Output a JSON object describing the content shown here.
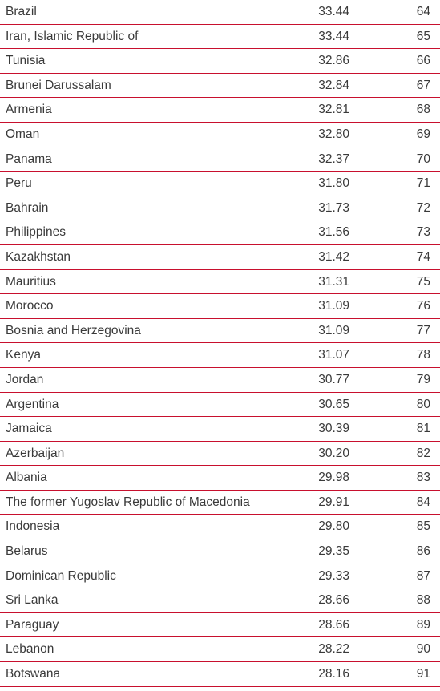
{
  "rows": [
    {
      "country": "Brazil",
      "score": "33.44",
      "rank": "64"
    },
    {
      "country": "Iran, Islamic Republic of",
      "score": "33.44",
      "rank": "65"
    },
    {
      "country": "Tunisia",
      "score": "32.86",
      "rank": "66"
    },
    {
      "country": "Brunei Darussalam",
      "score": "32.84",
      "rank": "67"
    },
    {
      "country": "Armenia",
      "score": "32.81",
      "rank": "68"
    },
    {
      "country": "Oman",
      "score": "32.80",
      "rank": "69"
    },
    {
      "country": "Panama",
      "score": "32.37",
      "rank": "70"
    },
    {
      "country": "Peru",
      "score": "31.80",
      "rank": "71"
    },
    {
      "country": "Bahrain",
      "score": "31.73",
      "rank": "72"
    },
    {
      "country": "Philippines",
      "score": "31.56",
      "rank": "73"
    },
    {
      "country": "Kazakhstan",
      "score": "31.42",
      "rank": "74"
    },
    {
      "country": "Mauritius",
      "score": "31.31",
      "rank": "75"
    },
    {
      "country": "Morocco",
      "score": "31.09",
      "rank": "76"
    },
    {
      "country": "Bosnia and Herzegovina",
      "score": "31.09",
      "rank": "77"
    },
    {
      "country": "Kenya",
      "score": "31.07",
      "rank": "78"
    },
    {
      "country": "Jordan",
      "score": "30.77",
      "rank": "79"
    },
    {
      "country": "Argentina",
      "score": "30.65",
      "rank": "80"
    },
    {
      "country": "Jamaica",
      "score": "30.39",
      "rank": "81"
    },
    {
      "country": "Azerbaijan",
      "score": "30.20",
      "rank": "82"
    },
    {
      "country": "Albania",
      "score": "29.98",
      "rank": "83"
    },
    {
      "country": "The former Yugoslav Republic of Macedonia",
      "score": "29.91",
      "rank": "84"
    },
    {
      "country": "Indonesia",
      "score": "29.80",
      "rank": "85"
    },
    {
      "country": "Belarus",
      "score": "29.35",
      "rank": "86"
    },
    {
      "country": "Dominican Republic",
      "score": "29.33",
      "rank": "87"
    },
    {
      "country": "Sri Lanka",
      "score": "28.66",
      "rank": "88"
    },
    {
      "country": "Paraguay",
      "score": "28.66",
      "rank": "89"
    },
    {
      "country": "Lebanon",
      "score": "28.22",
      "rank": "90"
    },
    {
      "country": "Botswana",
      "score": "28.16",
      "rank": "91"
    }
  ],
  "colors": {
    "rule": "#c8102e",
    "text": "#3a3a3a"
  }
}
